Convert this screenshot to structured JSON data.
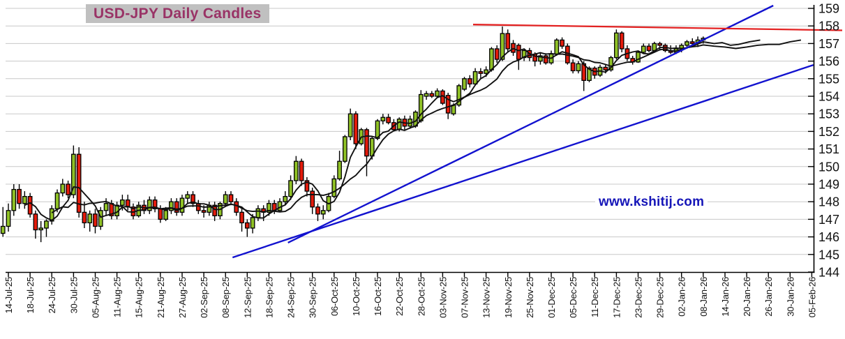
{
  "title": "USD-JPY Daily Candles",
  "watermark": "www.kshitij.com",
  "colors": {
    "up_candle": "#90c226",
    "down_candle": "#e31b0c",
    "candle_border": "#000000",
    "ma_line": "#111111",
    "trendline_blue": "#1212cf",
    "resistance_red": "#e32222",
    "grid": "#c8c8c8",
    "axis": "#000000",
    "title_fg": "#993366",
    "title_bg": "#c0c0c0",
    "watermark_fg": "#1616b8"
  },
  "chart_data": {
    "type": "candlestick",
    "title": "USD-JPY Daily Candles",
    "ylabel": "",
    "xlabel": "",
    "ylim": [
      144,
      159
    ],
    "y_tick_step": 1,
    "y_tick_labels": [
      159,
      158,
      157,
      156,
      155,
      154,
      153,
      152,
      151,
      150,
      149,
      148,
      147,
      146,
      145,
      144
    ],
    "x_tick_labels": [
      "14-Jul-25",
      "18-Jul-25",
      "24-Jul-25",
      "30-Jul-25",
      "05-Aug-25",
      "11-Aug-25",
      "15-Aug-25",
      "21-Aug-25",
      "27-Aug-25",
      "02-Sep-25",
      "08-Sep-25",
      "12-Sep-25",
      "18-Sep-25",
      "24-Sep-25",
      "30-Sep-25",
      "06-Oct-25",
      "10-Oct-25",
      "16-Oct-25",
      "22-Oct-25",
      "28-Oct-25",
      "03-Nov-25",
      "07-Nov-25",
      "13-Nov-25",
      "19-Nov-25",
      "25-Nov-25",
      "01-Dec-25",
      "05-Dec-25",
      "11-Dec-25",
      "17-Dec-25",
      "23-Dec-25",
      "29-Dec-25",
      "02-Jan-26",
      "08-Jan-26",
      "14-Jan-26",
      "20-Jan-26",
      "26-Jan-26",
      "30-Jan-26",
      "05-Feb-26"
    ],
    "candles_per_x_tick": 4,
    "grid": "horizontal-only",
    "first_candle_index": -1,
    "candles": [
      [
        146.2,
        147.7,
        146.0,
        146.6
      ],
      [
        146.6,
        147.9,
        146.3,
        147.5
      ],
      [
        147.5,
        149.0,
        147.2,
        148.7
      ],
      [
        148.7,
        149.0,
        147.6,
        147.9
      ],
      [
        147.9,
        148.6,
        147.6,
        148.3
      ],
      [
        148.3,
        148.5,
        147.1,
        147.3
      ],
      [
        147.3,
        147.5,
        145.9,
        146.4
      ],
      [
        146.4,
        146.9,
        145.7,
        146.5
      ],
      [
        146.5,
        147.0,
        146.0,
        146.9
      ],
      [
        146.9,
        147.8,
        146.7,
        147.6
      ],
      [
        147.6,
        148.7,
        147.4,
        148.5
      ],
      [
        148.5,
        149.3,
        148.3,
        149.0
      ],
      [
        149.0,
        149.2,
        148.2,
        148.4
      ],
      [
        148.4,
        151.2,
        148.2,
        150.7
      ],
      [
        150.7,
        151.1,
        147.1,
        147.4
      ],
      [
        147.4,
        148.0,
        146.5,
        146.8
      ],
      [
        146.8,
        147.5,
        146.3,
        147.3
      ],
      [
        147.3,
        147.6,
        146.2,
        146.6
      ],
      [
        146.6,
        147.7,
        146.4,
        147.5
      ],
      [
        147.5,
        148.2,
        147.2,
        147.9
      ],
      [
        147.9,
        148.1,
        147.0,
        147.2
      ],
      [
        147.2,
        148.0,
        147.0,
        147.8
      ],
      [
        147.8,
        148.4,
        147.5,
        148.1
      ],
      [
        148.1,
        148.4,
        147.5,
        147.7
      ],
      [
        147.7,
        147.9,
        147.0,
        147.2
      ],
      [
        147.2,
        148.0,
        147.1,
        147.8
      ],
      [
        147.8,
        148.1,
        147.3,
        147.5
      ],
      [
        147.5,
        148.3,
        147.3,
        148.1
      ],
      [
        148.1,
        148.3,
        147.4,
        147.6
      ],
      [
        147.6,
        147.8,
        146.8,
        147.0
      ],
      [
        147.0,
        147.7,
        146.9,
        147.5
      ],
      [
        147.5,
        148.2,
        147.3,
        148.0
      ],
      [
        148.0,
        148.2,
        147.2,
        147.4
      ],
      [
        147.4,
        148.4,
        147.2,
        148.2
      ],
      [
        148.2,
        148.6,
        147.9,
        148.4
      ],
      [
        148.4,
        148.6,
        147.7,
        147.9
      ],
      [
        147.9,
        148.1,
        147.3,
        147.5
      ],
      [
        147.5,
        147.8,
        147.1,
        147.4
      ],
      [
        147.4,
        148.0,
        147.2,
        147.8
      ],
      [
        147.8,
        148.0,
        146.9,
        147.2
      ],
      [
        147.2,
        148.0,
        147.0,
        147.9
      ],
      [
        147.9,
        148.6,
        147.7,
        148.4
      ],
      [
        148.4,
        148.6,
        147.8,
        148.0
      ],
      [
        148.0,
        148.2,
        147.2,
        147.4
      ],
      [
        147.4,
        147.6,
        146.3,
        146.8
      ],
      [
        146.8,
        147.0,
        146.0,
        146.5
      ],
      [
        146.5,
        147.3,
        146.2,
        147.1
      ],
      [
        147.1,
        147.8,
        146.9,
        147.6
      ],
      [
        147.6,
        147.8,
        146.9,
        147.4
      ],
      [
        147.4,
        148.1,
        147.2,
        147.9
      ],
      [
        147.9,
        148.1,
        147.3,
        147.5
      ],
      [
        147.5,
        148.2,
        147.4,
        148.0
      ],
      [
        148.0,
        148.6,
        147.8,
        148.3
      ],
      [
        148.3,
        149.5,
        148.1,
        149.2
      ],
      [
        149.2,
        150.6,
        149.0,
        150.3
      ],
      [
        150.3,
        150.45,
        148.9,
        149.2
      ],
      [
        149.2,
        149.4,
        148.3,
        148.6
      ],
      [
        148.6,
        148.8,
        147.3,
        147.7
      ],
      [
        147.7,
        147.9,
        146.9,
        147.3
      ],
      [
        147.3,
        147.8,
        147.0,
        147.5
      ],
      [
        147.5,
        148.5,
        147.4,
        148.3
      ],
      [
        148.3,
        149.5,
        148.2,
        149.3
      ],
      [
        149.3,
        150.9,
        149.2,
        150.3
      ],
      [
        150.3,
        151.8,
        150.2,
        151.7
      ],
      [
        151.7,
        153.3,
        151.5,
        153.0
      ],
      [
        153.0,
        153.15,
        151.0,
        151.3
      ],
      [
        151.3,
        152.2,
        151.2,
        152.1
      ],
      [
        152.1,
        152.2,
        149.45,
        150.6
      ],
      [
        150.6,
        151.7,
        150.4,
        151.6
      ],
      [
        151.6,
        152.7,
        151.5,
        152.6
      ],
      [
        152.6,
        153.0,
        152.4,
        152.8
      ],
      [
        152.8,
        153.0,
        152.4,
        152.5
      ],
      [
        152.5,
        152.7,
        152.0,
        152.1
      ],
      [
        152.1,
        152.8,
        152.0,
        152.7
      ],
      [
        152.7,
        152.9,
        152.1,
        152.3
      ],
      [
        152.3,
        152.9,
        152.15,
        152.7
      ],
      [
        152.3,
        153.2,
        152.2,
        153.1
      ],
      [
        152.6,
        154.35,
        152.5,
        154.1
      ],
      [
        154.0,
        154.3,
        153.8,
        154.15
      ],
      [
        154.15,
        154.3,
        153.9,
        154.0
      ],
      [
        154.0,
        154.45,
        153.9,
        154.3
      ],
      [
        154.3,
        154.4,
        153.5,
        153.6
      ],
      [
        154.05,
        154.2,
        152.7,
        153.05
      ],
      [
        153.0,
        153.6,
        152.9,
        153.5
      ],
      [
        153.5,
        154.7,
        153.4,
        154.6
      ],
      [
        154.4,
        155.1,
        154.3,
        155.0
      ],
      [
        155.0,
        155.2,
        154.5,
        154.7
      ],
      [
        154.7,
        155.6,
        154.6,
        155.4
      ],
      [
        155.4,
        155.6,
        155.0,
        155.3
      ],
      [
        155.3,
        155.7,
        155.1,
        155.5
      ],
      [
        155.5,
        156.8,
        155.4,
        156.7
      ],
      [
        156.7,
        156.9,
        155.9,
        156.1
      ],
      [
        156.1,
        157.97,
        156.0,
        157.57
      ],
      [
        157.57,
        157.8,
        156.5,
        156.7
      ],
      [
        157.0,
        157.2,
        156.3,
        156.5
      ],
      [
        156.9,
        157.0,
        155.5,
        156.1
      ],
      [
        156.2,
        156.7,
        156.0,
        156.6
      ],
      [
        156.6,
        156.75,
        156.0,
        156.2
      ],
      [
        156.4,
        156.5,
        155.7,
        156.0
      ],
      [
        156.0,
        156.5,
        155.8,
        156.3
      ],
      [
        156.3,
        156.45,
        155.8,
        155.9
      ],
      [
        155.9,
        156.6,
        155.8,
        156.4
      ],
      [
        156.4,
        157.3,
        156.3,
        157.2
      ],
      [
        157.2,
        157.35,
        156.7,
        156.85
      ],
      [
        156.85,
        157.0,
        155.8,
        155.9
      ],
      [
        155.9,
        156.1,
        155.3,
        155.45
      ],
      [
        155.45,
        156.0,
        155.3,
        155.85
      ],
      [
        155.85,
        156.0,
        154.3,
        154.9
      ],
      [
        154.9,
        155.7,
        154.8,
        155.6
      ],
      [
        155.6,
        155.7,
        155.0,
        155.2
      ],
      [
        155.2,
        155.8,
        155.1,
        155.65
      ],
      [
        155.65,
        155.8,
        155.3,
        155.5
      ],
      [
        155.5,
        156.3,
        155.4,
        156.2
      ],
      [
        156.2,
        157.8,
        156.1,
        157.6
      ],
      [
        157.6,
        157.7,
        156.5,
        156.7
      ],
      [
        156.7,
        156.9,
        156.0,
        156.15
      ],
      [
        156.15,
        156.3,
        155.8,
        155.95
      ],
      [
        155.95,
        156.6,
        155.9,
        156.5
      ],
      [
        156.5,
        157.0,
        156.4,
        156.85
      ],
      [
        156.85,
        157.0,
        156.5,
        156.6
      ],
      [
        156.6,
        157.1,
        156.5,
        157.0
      ],
      [
        157.0,
        157.1,
        156.6,
        156.9
      ],
      [
        156.9,
        157.0,
        156.5,
        156.6
      ],
      [
        156.6,
        156.9,
        156.4,
        156.5
      ],
      [
        156.5,
        156.9,
        156.4,
        156.7
      ],
      [
        156.7,
        157.0,
        156.5,
        156.9
      ],
      [
        156.9,
        157.2,
        156.7,
        157.1
      ],
      [
        157.1,
        157.3,
        156.9,
        157.0
      ],
      [
        157.0,
        157.4,
        156.8,
        157.2
      ],
      [
        157.2,
        157.4,
        157.0,
        157.3
      ]
    ],
    "overlays": {
      "ma_fast_period": 5,
      "ma_slow_period": 10,
      "ma_fast_extension": [
        [
          130,
          157.0
        ],
        [
          131.5,
          157.05
        ],
        [
          133,
          156.9
        ],
        [
          134.5,
          156.95
        ],
        [
          136.5,
          157.1
        ],
        [
          138.5,
          157.2
        ]
      ],
      "ma_slow_extension": [
        [
          130,
          156.85
        ],
        [
          132,
          156.8
        ],
        [
          134,
          156.72
        ],
        [
          136,
          156.8
        ],
        [
          138,
          156.9
        ],
        [
          140,
          156.95
        ],
        [
          142,
          156.95
        ],
        [
          144,
          157.1
        ],
        [
          146,
          157.2
        ]
      ],
      "trendlines": [
        {
          "name": "support-line-long",
          "from": {
            "i": 41.3,
            "v": 144.83
          },
          "to": {
            "i": 148.3,
            "v": 155.78
          }
        },
        {
          "name": "support-line-steep",
          "from": {
            "i": 51.5,
            "v": 145.67
          },
          "to": {
            "i": 140.9,
            "v": 159.16
          }
        }
      ],
      "resistance_line": {
        "from": {
          "i": 85.6,
          "v": 158.08
        },
        "to": {
          "i": 153.6,
          "v": 157.75
        }
      }
    }
  }
}
